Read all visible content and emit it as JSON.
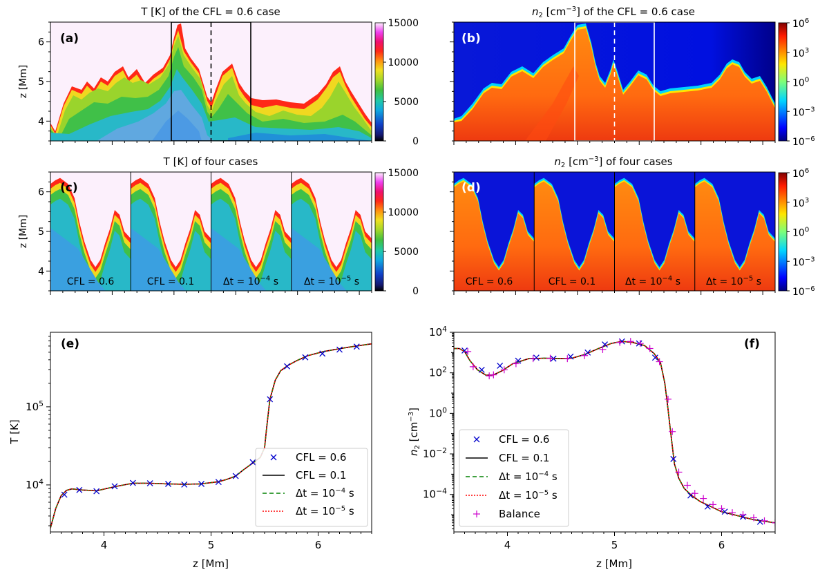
{
  "chart_data": [
    {
      "id": "a",
      "type": "heatmap",
      "panel_label": "(a)",
      "title": "T [K] of the CFL = 0.6 case",
      "ylabel": "z [Mm]",
      "ylim": [
        3.5,
        6.5
      ],
      "yticks": [
        "4",
        "5",
        "6"
      ],
      "colorbar": {
        "range": [
          0,
          15000
        ],
        "ticks": [
          "0",
          "5000",
          "10000",
          "15000"
        ]
      }
    },
    {
      "id": "b",
      "type": "heatmap",
      "panel_label": "(b)",
      "title_main": "n",
      "title_sub": "2",
      "title_unit": " [cm",
      "title_exp": "−3",
      "title_tail": "] of the CFL = 0.6 case",
      "colorbar": {
        "scale": "log",
        "range": [
          -6,
          6
        ],
        "ticks": [
          {
            "base": "10",
            "exp": "6"
          },
          {
            "base": "10",
            "exp": "3"
          },
          {
            "base": "10",
            "exp": "0"
          },
          {
            "base": "10",
            "exp": "−3"
          },
          {
            "base": "10",
            "exp": "−6"
          }
        ]
      }
    },
    {
      "id": "c",
      "type": "heatmap",
      "panel_label": "(c)",
      "title": "T [K] of four cases",
      "ylabel": "z [Mm]",
      "ylim": [
        3.5,
        6.5
      ],
      "yticks": [
        "4",
        "5",
        "6"
      ],
      "cases": [
        {
          "text": "CFL = 0.6"
        },
        {
          "text": "CFL = 0.1"
        },
        {
          "pre": "Δt = 10",
          "exp": "−4",
          "post": " s"
        },
        {
          "pre": "Δt = 10",
          "exp": "−5",
          "post": " s"
        }
      ],
      "colorbar": {
        "range": [
          0,
          15000
        ],
        "ticks": [
          "0",
          "5000",
          "10000",
          "15000"
        ]
      }
    },
    {
      "id": "d",
      "type": "heatmap",
      "panel_label": "(d)",
      "title_main": "n",
      "title_sub": "2",
      "title_unit": " [cm",
      "title_exp": "−3",
      "title_tail": "] of four cases",
      "cases": [
        {
          "text": "CFL = 0.6"
        },
        {
          "text": "CFL = 0.1"
        },
        {
          "pre": "Δt = 10",
          "exp": "−4",
          "post": " s"
        },
        {
          "pre": "Δt = 10",
          "exp": "−5",
          "post": " s"
        }
      ],
      "colorbar": {
        "scale": "log",
        "range": [
          -6,
          6
        ],
        "ticks": [
          {
            "base": "10",
            "exp": "6"
          },
          {
            "base": "10",
            "exp": "3"
          },
          {
            "base": "10",
            "exp": "0"
          },
          {
            "base": "10",
            "exp": "−3"
          },
          {
            "base": "10",
            "exp": "−6"
          }
        ]
      }
    },
    {
      "id": "e",
      "type": "line",
      "panel_label": "(e)",
      "yscale": "log",
      "xlabel": "z [Mm]",
      "ylabel": "T [K]",
      "xlim": [
        3.5,
        6.5
      ],
      "ylim": [
        2500,
        900000
      ],
      "xticks": [
        4,
        5,
        6
      ],
      "yticks": [
        {
          "v": 10000,
          "base": "10",
          "exp": "4"
        },
        {
          "v": 100000,
          "base": "10",
          "exp": "5"
        }
      ],
      "x": [
        3.5,
        3.55,
        3.6,
        3.65,
        3.7,
        3.8,
        3.93,
        4.1,
        4.27,
        4.43,
        4.6,
        4.75,
        4.9,
        5.07,
        5.15,
        5.23,
        5.3,
        5.4,
        5.46,
        5.5,
        5.52,
        5.55,
        5.6,
        5.65,
        5.72,
        5.8,
        5.9,
        6.05,
        6.25,
        6.5
      ],
      "values": [
        2800,
        5000,
        7300,
        8500,
        8900,
        8600,
        8400,
        9500,
        10500,
        10500,
        10300,
        10200,
        10300,
        11000,
        11800,
        13000,
        15500,
        19500,
        22500,
        30000,
        55000,
        125000,
        220000,
        290000,
        340000,
        390000,
        450000,
        510000,
        570000,
        640000
      ],
      "markers_x": [
        3.63,
        3.77,
        3.93,
        4.1,
        4.27,
        4.43,
        4.6,
        4.75,
        4.91,
        5.07,
        5.23,
        5.39,
        5.55,
        5.71,
        5.88,
        6.04,
        6.2,
        6.36
      ],
      "markers_y": [
        7500,
        8600,
        8300,
        9600,
        10600,
        10500,
        10300,
        10100,
        10300,
        10900,
        13000,
        19500,
        125000,
        330000,
        430000,
        480000,
        540000,
        590000
      ],
      "legend": [
        {
          "text": "CFL = 0.6",
          "style": "marker-x",
          "color": "#0000cc"
        },
        {
          "text": "CFL = 0.1",
          "style": "solid",
          "color": "#000000"
        },
        {
          "pre": "Δt = 10",
          "exp": "−4",
          "post": " s",
          "style": "dashed",
          "color": "#008000"
        },
        {
          "pre": "Δt = 10",
          "exp": "−5",
          "post": " s",
          "style": "dotted",
          "color": "#ff0000"
        }
      ]
    },
    {
      "id": "f",
      "type": "line",
      "panel_label": "(f)",
      "yscale": "log",
      "xlabel": "z [Mm]",
      "ylabel_main": "n",
      "ylabel_sub": "2",
      "ylabel_unit": " [cm",
      "ylabel_exp": "−3",
      "ylabel_tail": "]",
      "xlim": [
        3.5,
        6.5
      ],
      "ylim": [
        -5.85,
        4.0
      ],
      "xticks": [
        4,
        5,
        6
      ],
      "yticks": [
        {
          "v": 4,
          "base": "10",
          "exp": "4"
        },
        {
          "v": 2,
          "base": "10",
          "exp": "2"
        },
        {
          "v": 0,
          "base": "10",
          "exp": "0"
        },
        {
          "v": -2,
          "base": "10",
          "exp": "−2"
        },
        {
          "v": -4,
          "base": "10",
          "exp": "−4"
        }
      ],
      "x": [
        3.5,
        3.55,
        3.6,
        3.65,
        3.72,
        3.8,
        3.87,
        3.95,
        4.05,
        4.2,
        4.35,
        4.5,
        4.6,
        4.72,
        4.85,
        4.97,
        5.07,
        5.17,
        5.28,
        5.37,
        5.43,
        5.47,
        5.5,
        5.53,
        5.56,
        5.6,
        5.65,
        5.72,
        5.8,
        5.9,
        6.0,
        6.15,
        6.3,
        6.5
      ],
      "values_log": [
        3.2,
        3.2,
        3.05,
        2.6,
        2.15,
        1.88,
        1.9,
        2.1,
        2.45,
        2.7,
        2.72,
        2.7,
        2.72,
        2.9,
        3.2,
        3.45,
        3.55,
        3.5,
        3.35,
        2.95,
        2.5,
        1.5,
        0.2,
        -1.2,
        -2.5,
        -3.2,
        -3.7,
        -4.05,
        -4.35,
        -4.6,
        -4.85,
        -5.05,
        -5.25,
        -5.4
      ],
      "markers_x": [
        3.6,
        3.76,
        3.93,
        4.1,
        4.27,
        4.43,
        4.59,
        4.75,
        4.91,
        5.07,
        5.23,
        5.38,
        5.55,
        5.71,
        5.87,
        6.03,
        6.2,
        6.36
      ],
      "markers_log": [
        3.1,
        2.15,
        2.35,
        2.6,
        2.75,
        2.7,
        2.8,
        3.0,
        3.4,
        3.55,
        3.45,
        2.75,
        -2.25,
        -4.05,
        -4.6,
        -4.85,
        -5.1,
        -5.35
      ],
      "balance_x": [
        3.63,
        3.68,
        3.83,
        3.87,
        3.97,
        4.08,
        4.24,
        4.4,
        4.56,
        4.72,
        4.89,
        5.05,
        5.15,
        5.24,
        5.33,
        5.42,
        5.5,
        5.54,
        5.6,
        5.68,
        5.75,
        5.83,
        5.92,
        6.0,
        6.1,
        6.2,
        6.3,
        6.4,
        6.5
      ],
      "balance_log": [
        3.05,
        2.3,
        1.85,
        1.9,
        2.15,
        2.45,
        2.7,
        2.72,
        2.7,
        2.85,
        3.15,
        3.5,
        3.55,
        3.45,
        3.2,
        2.55,
        0.7,
        -0.9,
        -2.9,
        -3.55,
        -3.95,
        -4.2,
        -4.5,
        -4.7,
        -4.9,
        -5.0,
        -5.15,
        -5.3,
        -5.4
      ],
      "legend": [
        {
          "text": "CFL = 0.6",
          "style": "marker-x",
          "color": "#0000cc"
        },
        {
          "text": "CFL = 0.1",
          "style": "solid",
          "color": "#000000"
        },
        {
          "pre": "Δt = 10",
          "exp": "−4",
          "post": " s",
          "style": "dashed",
          "color": "#008000"
        },
        {
          "pre": "Δt = 10",
          "exp": "−5",
          "post": " s",
          "style": "dotted",
          "color": "#ff0000"
        },
        {
          "text": "Balance",
          "style": "marker-plus",
          "color": "#cc00cc"
        }
      ]
    }
  ]
}
